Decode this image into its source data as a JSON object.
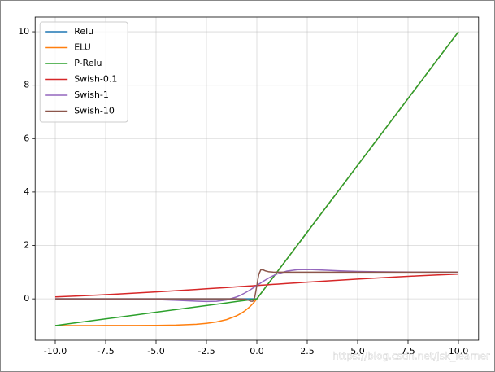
{
  "chart_data": {
    "type": "line",
    "x": [
      -10,
      -9,
      -8,
      -7,
      -6,
      -5,
      -4,
      -3,
      -2.5,
      -2,
      -1.5,
      -1,
      -0.8,
      -0.6,
      -0.4,
      -0.3,
      -0.2,
      -0.1,
      0,
      0.1,
      0.2,
      0.3,
      0.4,
      0.6,
      0.8,
      1,
      1.5,
      2,
      2.5,
      3,
      4,
      5,
      6,
      7,
      8,
      9,
      10
    ],
    "series": [
      {
        "name": "Relu",
        "color": "#1f77b4",
        "values": [
          0,
          0,
          0,
          0,
          0,
          0,
          0,
          0,
          0,
          0,
          0,
          0,
          0,
          0,
          0,
          0,
          0,
          0,
          0,
          0.1,
          0.2,
          0.3,
          0.4,
          0.6,
          0.8,
          1,
          1.5,
          2,
          2.5,
          3,
          4,
          5,
          6,
          7,
          8,
          9,
          10
        ]
      },
      {
        "name": "ELU",
        "color": "#ff7f0e",
        "values": [
          -1.0,
          -0.9999,
          -0.9997,
          -0.9991,
          -0.9975,
          -0.9933,
          -0.9817,
          -0.9502,
          -0.9179,
          -0.8647,
          -0.7769,
          -0.6321,
          -0.5507,
          -0.4512,
          -0.3297,
          -0.2592,
          -0.1813,
          -0.0952,
          0,
          0.1,
          0.2,
          0.3,
          0.4,
          0.6,
          0.8,
          1,
          1.5,
          2,
          2.5,
          3,
          4,
          5,
          6,
          7,
          8,
          9,
          10
        ]
      },
      {
        "name": "P-Relu",
        "color": "#2ca02c",
        "values": [
          -1,
          -0.9,
          -0.8,
          -0.7,
          -0.6,
          -0.5,
          -0.4,
          -0.3,
          -0.25,
          -0.2,
          -0.15,
          -0.1,
          -0.08,
          -0.06,
          -0.04,
          -0.03,
          -0.02,
          -0.01,
          0,
          0.1,
          0.2,
          0.3,
          0.4,
          0.6,
          0.8,
          1,
          1.5,
          2,
          2.5,
          3,
          4,
          5,
          6,
          7,
          8,
          9,
          10
        ]
      },
      {
        "name": "Swish-0.1",
        "color": "#d62728",
        "values": [
          0.0723,
          0.1041,
          0.1389,
          0.1766,
          0.217,
          0.26,
          0.3052,
          0.3523,
          0.3763,
          0.4007,
          0.4253,
          0.4501,
          0.46,
          0.47,
          0.48,
          0.485,
          0.49,
          0.495,
          0.5,
          0.505,
          0.51,
          0.515,
          0.52,
          0.53,
          0.54,
          0.5499,
          0.5747,
          0.5993,
          0.6237,
          0.6477,
          0.6948,
          0.74,
          0.783,
          0.8234,
          0.8611,
          0.8959,
          0.9277
        ]
      },
      {
        "name": "Swish-1",
        "color": "#9467bd",
        "values": [
          -0.0004,
          -0.001,
          -0.0023,
          -0.0055,
          -0.0124,
          -0.0265,
          -0.0527,
          -0.0881,
          -0.0994,
          -0.0908,
          -0.0413,
          0.0723,
          0.1389,
          0.217,
          0.3052,
          0.3523,
          0.4007,
          0.4501,
          0.5,
          0.5499,
          0.5993,
          0.6477,
          0.6948,
          0.783,
          0.8611,
          0.9277,
          1.0413,
          1.0908,
          1.0994,
          1.0881,
          1.0527,
          1.0265,
          1.0124,
          1.0055,
          1.0023,
          1.001,
          1.0004
        ]
      },
      {
        "name": "Swish-10",
        "color": "#8c564b",
        "values": [
          0,
          0,
          0,
          0,
          0,
          0,
          0,
          0,
          0,
          0,
          0,
          -0.0004,
          -0.0023,
          -0.0124,
          -0.0527,
          -0.0881,
          -0.0908,
          0.0723,
          0.5,
          0.9277,
          1.0908,
          1.0881,
          1.0527,
          1.0124,
          1.0023,
          1.0004,
          1,
          1,
          1,
          1,
          1,
          1,
          1,
          1,
          1,
          1,
          1
        ]
      }
    ],
    "xlim": [
      -11,
      11
    ],
    "ylim": [
      -1.55,
      10.55
    ],
    "xticks": [
      {
        "value": -10,
        "label": "-10.0"
      },
      -7.5,
      {
        "value": -5,
        "label": "-5.0"
      },
      -2.5,
      {
        "value": 0,
        "label": "0.0"
      },
      2.5,
      {
        "value": 5,
        "label": "5.0"
      },
      7.5,
      {
        "value": 10,
        "label": "10.0"
      }
    ],
    "yticks": [
      0,
      2,
      4,
      6,
      8,
      10
    ],
    "grid": true,
    "legend": "upper-left",
    "watermark": "https://blog.csdn.net/jsk_learner"
  }
}
